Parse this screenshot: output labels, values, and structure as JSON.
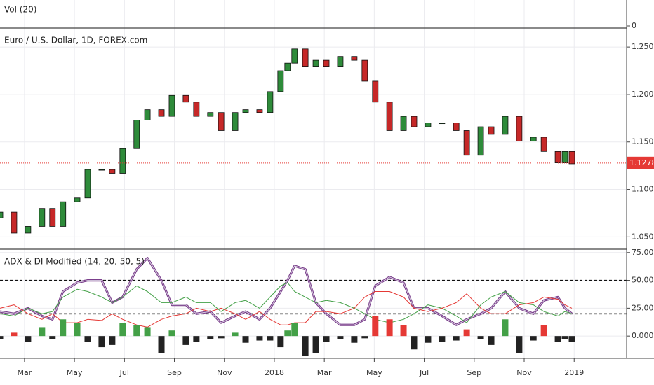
{
  "chart_data": [
    {
      "type": "volume",
      "title": "Vol (20)",
      "yticks": [
        0
      ]
    },
    {
      "type": "candlestick",
      "title": "Euro / U.S. Dollar, 1D, FOREX.com",
      "ylim": [
        1.037,
        1.27
      ],
      "yticks": [
        {
          "value": 1.05,
          "label": "1.05000"
        },
        {
          "value": 1.1,
          "label": "1.10000"
        },
        {
          "value": 1.15,
          "label": "1.15000"
        },
        {
          "value": 1.2,
          "label": "1.20000"
        },
        {
          "value": 1.25,
          "label": "1.25000"
        }
      ],
      "last_price": 1.12782,
      "last_price_color": "#e53935",
      "up_color": "#2e8b3a",
      "down_color": "#c62828",
      "x": [
        1.02,
        1.58,
        2.14,
        2.7,
        3.12,
        3.54,
        4.11,
        4.53,
        5.09,
        5.51,
        5.93,
        6.49,
        6.92,
        7.48,
        7.9,
        8.46,
        8.88,
        9.44,
        9.87,
        10.43,
        10.85,
        11.41,
        11.83,
        12.25,
        12.53,
        12.81,
        13.24,
        13.66,
        14.08,
        14.64,
        15.2,
        15.62,
        16.04,
        16.61,
        17.17,
        17.59,
        18.15,
        18.71,
        19.28,
        19.7,
        20.26,
        20.68,
        21.24,
        21.8,
        22.37,
        22.79,
        23.35,
        23.63,
        23.91
      ],
      "open": [
        1.07,
        1.076,
        1.054,
        1.061,
        1.08,
        1.061,
        1.087,
        1.091,
        1.121,
        1.121,
        1.117,
        1.143,
        1.173,
        1.184,
        1.177,
        1.199,
        1.192,
        1.177,
        1.181,
        1.162,
        1.181,
        1.184,
        1.181,
        1.203,
        1.225,
        1.233,
        1.248,
        1.229,
        1.236,
        1.229,
        1.24,
        1.236,
        1.214,
        1.192,
        1.162,
        1.177,
        1.166,
        1.17,
        1.17,
        1.162,
        1.136,
        1.166,
        1.158,
        1.177,
        1.151,
        1.155,
        1.14,
        1.128,
        1.14
      ],
      "close": [
        1.076,
        1.054,
        1.061,
        1.08,
        1.061,
        1.087,
        1.091,
        1.121,
        1.121,
        1.117,
        1.143,
        1.173,
        1.184,
        1.177,
        1.199,
        1.192,
        1.177,
        1.181,
        1.162,
        1.181,
        1.184,
        1.181,
        1.203,
        1.225,
        1.233,
        1.248,
        1.229,
        1.236,
        1.229,
        1.24,
        1.236,
        1.214,
        1.192,
        1.162,
        1.177,
        1.166,
        1.17,
        1.17,
        1.162,
        1.136,
        1.166,
        1.158,
        1.177,
        1.151,
        1.155,
        1.14,
        1.128,
        1.14,
        1.127
      ]
    },
    {
      "type": "indicator",
      "title": "ADX & DI Modified (14, 20, 50, 5)",
      "ylim": [
        -20,
        78
      ],
      "yticks": [
        {
          "value": 0,
          "label": "0.0000"
        },
        {
          "value": 25,
          "label": "25.0000"
        },
        {
          "value": 50,
          "label": "50.0000"
        },
        {
          "value": 75,
          "label": "75.0000"
        }
      ],
      "levels": [
        50,
        20
      ],
      "xlim": [
        1.02,
        26.1
      ],
      "xticks": [
        {
          "value": 2,
          "label": "Mar"
        },
        {
          "value": 4,
          "label": "May"
        },
        {
          "value": 6,
          "label": "Jul"
        },
        {
          "value": 8,
          "label": "Sep"
        },
        {
          "value": 10,
          "label": "Nov"
        },
        {
          "value": 12,
          "label": "2018"
        },
        {
          "value": 14,
          "label": "Mar"
        },
        {
          "value": 16,
          "label": "May"
        },
        {
          "value": 18,
          "label": "Jul"
        },
        {
          "value": 20,
          "label": "Sep"
        },
        {
          "value": 22,
          "label": "Nov"
        },
        {
          "value": 24,
          "label": "2019"
        }
      ],
      "x": [
        1.02,
        1.58,
        2.14,
        2.7,
        3.12,
        3.54,
        4.11,
        4.53,
        5.09,
        5.51,
        5.93,
        6.49,
        6.92,
        7.48,
        7.9,
        8.46,
        8.88,
        9.44,
        9.87,
        10.43,
        10.85,
        11.41,
        11.83,
        12.25,
        12.53,
        12.81,
        13.24,
        13.66,
        14.08,
        14.64,
        15.2,
        15.62,
        16.04,
        16.61,
        17.17,
        17.59,
        18.15,
        18.71,
        19.28,
        19.7,
        20.26,
        20.68,
        21.24,
        21.8,
        22.37,
        22.79,
        23.35,
        23.63,
        23.91
      ],
      "series": [
        {
          "name": "ADX",
          "kind": "line",
          "color": "#7b3f8c",
          "values": [
            22,
            20,
            25,
            18,
            15,
            40,
            48,
            50,
            50,
            30,
            35,
            60,
            70,
            50,
            28,
            28,
            20,
            22,
            12,
            18,
            22,
            15,
            25,
            40,
            50,
            63,
            60,
            30,
            20,
            10,
            10,
            15,
            45,
            53,
            48,
            25,
            25,
            18,
            10,
            15,
            20,
            25,
            40,
            25,
            20,
            32,
            35,
            25,
            20
          ]
        },
        {
          "name": "+DI",
          "kind": "line",
          "color": "#43a047",
          "values": [
            20,
            18,
            25,
            20,
            22,
            35,
            42,
            40,
            35,
            30,
            35,
            45,
            40,
            30,
            30,
            35,
            30,
            30,
            22,
            30,
            32,
            25,
            35,
            45,
            48,
            40,
            35,
            30,
            32,
            30,
            25,
            20,
            15,
            12,
            15,
            20,
            28,
            25,
            18,
            12,
            28,
            35,
            40,
            30,
            28,
            22,
            18,
            22,
            20
          ]
        },
        {
          "name": "-DI",
          "kind": "line",
          "color": "#e53935",
          "values": [
            25,
            28,
            20,
            15,
            20,
            12,
            12,
            15,
            14,
            20,
            15,
            10,
            8,
            15,
            18,
            20,
            25,
            22,
            25,
            20,
            15,
            22,
            15,
            10,
            10,
            12,
            12,
            22,
            22,
            20,
            25,
            35,
            40,
            40,
            35,
            25,
            22,
            25,
            30,
            38,
            25,
            20,
            20,
            28,
            30,
            35,
            33,
            28,
            25
          ]
        },
        {
          "name": "Histogram",
          "kind": "histogram",
          "color": "#222222",
          "values": [
            -3,
            3,
            -5,
            8,
            -3,
            15,
            12,
            -5,
            -10,
            -8,
            12,
            10,
            8,
            -15,
            5,
            -8,
            -5,
            -3,
            -2,
            3,
            -6,
            -4,
            -4,
            -10,
            5,
            12,
            -18,
            -15,
            -5,
            -3,
            -6,
            -2,
            18,
            15,
            10,
            -12,
            -6,
            -5,
            -4,
            6,
            -3,
            -8,
            15,
            -15,
            -4,
            10,
            -5,
            -3,
            -5
          ]
        }
      ]
    }
  ]
}
